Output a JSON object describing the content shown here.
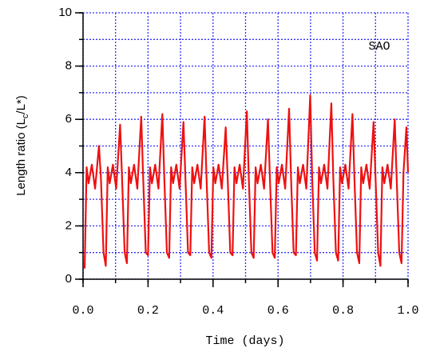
{
  "chart_data": {
    "type": "line",
    "xlabel": "Time (days)",
    "ylabel": [
      "Length ratio (L",
      "c",
      "/L*)"
    ],
    "annotation": "SAO",
    "color": "#ee1111",
    "grid_color": "#3333ff",
    "xlim": [
      0,
      1
    ],
    "ylim": [
      0,
      10
    ],
    "xticks": [
      {
        "value": 0,
        "label": "0.0"
      },
      {
        "value": 0.2,
        "label": "0.2"
      },
      {
        "value": 0.4,
        "label": "0.4"
      },
      {
        "value": 0.6,
        "label": "0.6"
      },
      {
        "value": 0.8,
        "label": "0.8"
      },
      {
        "value": 1,
        "label": "1.0"
      }
    ],
    "yticks": [
      0,
      2,
      4,
      6,
      8,
      10
    ],
    "xgrid": [
      0,
      0.1,
      0.2,
      0.3,
      0.4,
      0.5,
      0.6,
      0.7,
      0.8,
      0.9,
      1
    ],
    "ygrid": [
      0,
      1,
      2,
      3,
      4,
      5,
      6,
      7,
      8,
      9,
      10
    ],
    "grid": true,
    "x": [
      0.005,
      0.011,
      0.017,
      0.027,
      0.037,
      0.049,
      0.055,
      0.063,
      0.07,
      0.076,
      0.082,
      0.092,
      0.102,
      0.114,
      0.12,
      0.128,
      0.135,
      0.141,
      0.147,
      0.157,
      0.167,
      0.179,
      0.185,
      0.193,
      0.2,
      0.206,
      0.212,
      0.222,
      0.232,
      0.244,
      0.25,
      0.258,
      0.265,
      0.271,
      0.277,
      0.287,
      0.297,
      0.309,
      0.315,
      0.323,
      0.33,
      0.336,
      0.342,
      0.352,
      0.362,
      0.374,
      0.38,
      0.388,
      0.395,
      0.401,
      0.407,
      0.417,
      0.427,
      0.439,
      0.445,
      0.453,
      0.46,
      0.466,
      0.472,
      0.482,
      0.492,
      0.504,
      0.51,
      0.518,
      0.525,
      0.531,
      0.537,
      0.547,
      0.557,
      0.569,
      0.575,
      0.583,
      0.59,
      0.596,
      0.602,
      0.612,
      0.622,
      0.634,
      0.64,
      0.648,
      0.655,
      0.661,
      0.667,
      0.677,
      0.687,
      0.699,
      0.705,
      0.713,
      0.72,
      0.726,
      0.732,
      0.742,
      0.752,
      0.764,
      0.77,
      0.778,
      0.785,
      0.791,
      0.797,
      0.807,
      0.817,
      0.829,
      0.835,
      0.843,
      0.85,
      0.856,
      0.862,
      0.872,
      0.882,
      0.894,
      0.9,
      0.908,
      0.915,
      0.921,
      0.927,
      0.937,
      0.947,
      0.959,
      0.965,
      0.973,
      0.98,
      0.986,
      0.995,
      1.0
    ],
    "values": [
      0.4,
      4.2,
      3.6,
      4.3,
      3.4,
      5.0,
      3.8,
      1.0,
      0.5,
      4.2,
      3.6,
      4.3,
      3.4,
      5.8,
      3.8,
      1.0,
      0.6,
      4.2,
      3.6,
      4.3,
      3.4,
      6.1,
      3.8,
      1.0,
      0.9,
      4.2,
      3.6,
      4.3,
      3.4,
      6.2,
      3.8,
      1.0,
      0.8,
      4.2,
      3.6,
      4.3,
      3.4,
      5.9,
      3.8,
      1.0,
      0.9,
      4.2,
      3.6,
      4.3,
      3.4,
      6.1,
      3.8,
      1.0,
      0.8,
      4.2,
      3.6,
      4.3,
      3.4,
      5.7,
      3.8,
      1.0,
      0.9,
      4.2,
      3.6,
      4.3,
      3.4,
      6.3,
      3.8,
      1.0,
      0.8,
      4.2,
      3.6,
      4.3,
      3.4,
      6.0,
      3.8,
      1.0,
      0.8,
      4.2,
      3.6,
      4.3,
      3.4,
      6.4,
      3.8,
      1.0,
      0.9,
      4.2,
      3.6,
      4.3,
      3.4,
      6.9,
      3.8,
      1.0,
      0.7,
      4.2,
      3.6,
      4.3,
      3.4,
      6.6,
      3.8,
      1.0,
      0.7,
      4.2,
      3.6,
      4.3,
      3.4,
      6.2,
      3.8,
      1.0,
      0.6,
      4.2,
      3.6,
      4.3,
      3.4,
      5.9,
      3.8,
      1.0,
      0.5,
      4.2,
      3.6,
      4.3,
      3.4,
      6.0,
      3.8,
      1.0,
      0.6,
      4.0,
      5.7,
      4.0
    ]
  }
}
